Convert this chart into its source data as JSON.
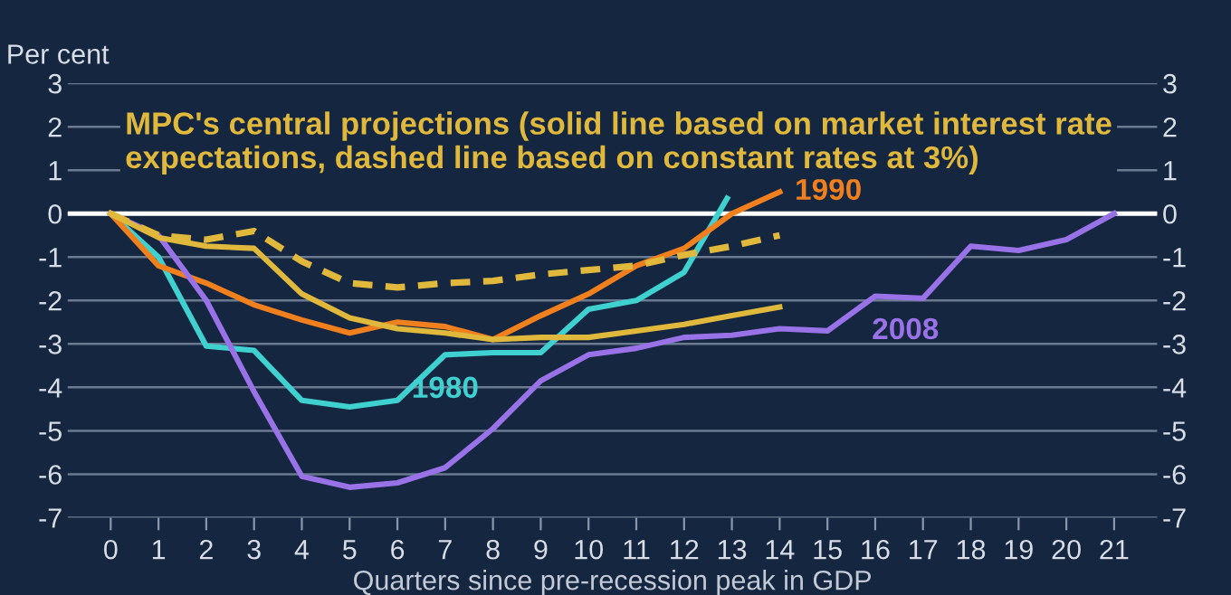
{
  "chart_data": {
    "type": "line",
    "ylabel": "Per cent",
    "xlabel": "Quarters since pre-recession peak in GDP",
    "x": [
      0,
      1,
      2,
      3,
      4,
      5,
      6,
      7,
      8,
      9,
      10,
      11,
      12,
      13,
      14,
      15,
      16,
      17,
      18,
      19,
      20,
      21
    ],
    "xlim": [
      -0.9,
      21.9
    ],
    "xticks": [
      0,
      1,
      2,
      3,
      4,
      5,
      6,
      7,
      8,
      9,
      10,
      11,
      12,
      13,
      14,
      15,
      16,
      17,
      18,
      19,
      20,
      21
    ],
    "ylim": [
      -7,
      3
    ],
    "yticks": [
      -7,
      -6,
      -5,
      -4,
      -3,
      -2,
      -1,
      0,
      1,
      2,
      3
    ],
    "y2lim": [
      -7,
      3
    ],
    "y2ticks": [
      -7,
      -6,
      -5,
      -4,
      -3,
      -2,
      -1,
      0,
      1,
      2,
      3
    ],
    "grid": "y",
    "legend": false,
    "ref_lines": [
      {
        "axis": "y",
        "value": 0,
        "color": "#ffffff"
      }
    ],
    "annotations": [
      "MPC's central projections (solid line based on market interest rate expectations, dashed line based on constant rates at 3%)"
    ],
    "series": [
      {
        "name": "1980",
        "color": "#3fd0d0",
        "line_style": "solid",
        "x": [
          0,
          1,
          2,
          3,
          4,
          5,
          6,
          7,
          8,
          9,
          10,
          11,
          12,
          12.9
        ],
        "values": [
          0,
          -1.0,
          -3.05,
          -3.15,
          -4.3,
          -4.45,
          -4.3,
          -3.25,
          -3.2,
          -3.2,
          -2.2,
          -2.0,
          -1.35,
          0.35
        ]
      },
      {
        "name": "1990",
        "color": "#f07f1e",
        "line_style": "solid",
        "x": [
          0,
          1,
          2,
          3,
          4,
          5,
          6,
          7,
          8,
          9,
          10,
          11,
          12,
          13,
          14
        ],
        "values": [
          0,
          -1.2,
          -1.6,
          -2.1,
          -2.45,
          -2.75,
          -2.5,
          -2.6,
          -2.9,
          -2.35,
          -1.85,
          -1.2,
          -0.8,
          0,
          0.5
        ]
      },
      {
        "name": "2008",
        "color": "#9a72e8",
        "line_style": "solid",
        "values": [
          0,
          -0.5,
          -2.0,
          -4.1,
          -6.05,
          -6.3,
          -6.2,
          -5.85,
          -4.95,
          -3.85,
          -3.25,
          -3.1,
          -2.85,
          -2.8,
          -2.65,
          -2.7,
          -1.9,
          -1.95,
          -0.75,
          -0.85,
          -0.6,
          0
        ]
      },
      {
        "color": "#e0b83c",
        "line_style": "solid",
        "x": [
          0,
          1,
          2,
          3,
          4,
          5,
          6,
          7,
          8,
          9,
          10,
          11,
          12,
          13,
          14
        ],
        "values": [
          0,
          -0.55,
          -0.75,
          -0.8,
          -1.85,
          -2.4,
          -2.65,
          -2.75,
          -2.9,
          -2.85,
          -2.85,
          -2.7,
          -2.55,
          -2.35,
          -2.15
        ]
      },
      {
        "color": "#e0b83c",
        "line_style": "dashed",
        "x": [
          0,
          1,
          2,
          3,
          4,
          5,
          6,
          7,
          8,
          9,
          10,
          11,
          12,
          13,
          14
        ],
        "values": [
          0,
          -0.5,
          -0.6,
          -0.4,
          -1.1,
          -1.6,
          -1.7,
          -1.6,
          -1.55,
          -1.4,
          -1.3,
          -1.2,
          -0.95,
          -0.75,
          -0.5
        ]
      }
    ]
  }
}
